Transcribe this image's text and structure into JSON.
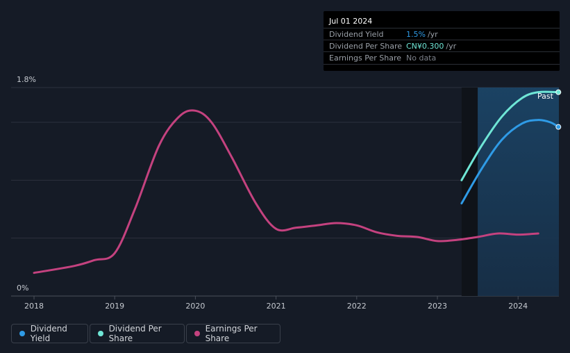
{
  "chart_data": {
    "type": "line",
    "title": "",
    "x_ticks": [
      2018,
      2019,
      2020,
      2021,
      2022,
      2023,
      2024
    ],
    "y_min_label": "0%",
    "y_max_label": "1.8%",
    "ylim": [
      0,
      1.8
    ],
    "past_label": "Past",
    "past_region_start": 2023.5,
    "series": [
      {
        "name": "Earnings Per Share",
        "color": "#c4427f",
        "points": [
          [
            2018.0,
            0.2
          ],
          [
            2018.5,
            0.26
          ],
          [
            2018.75,
            0.31
          ],
          [
            2019.0,
            0.37
          ],
          [
            2019.25,
            0.75
          ],
          [
            2019.55,
            1.3
          ],
          [
            2019.8,
            1.55
          ],
          [
            2020.0,
            1.6
          ],
          [
            2020.2,
            1.5
          ],
          [
            2020.45,
            1.2
          ],
          [
            2020.75,
            0.8
          ],
          [
            2021.0,
            0.58
          ],
          [
            2021.25,
            0.59
          ],
          [
            2021.5,
            0.61
          ],
          [
            2021.75,
            0.63
          ],
          [
            2022.0,
            0.61
          ],
          [
            2022.25,
            0.55
          ],
          [
            2022.5,
            0.52
          ],
          [
            2022.75,
            0.51
          ],
          [
            2023.0,
            0.475
          ],
          [
            2023.25,
            0.485
          ],
          [
            2023.5,
            0.51
          ],
          [
            2023.75,
            0.54
          ],
          [
            2024.0,
            0.53
          ],
          [
            2024.25,
            0.54
          ]
        ]
      },
      {
        "name": "Dividend Yield",
        "color": "#2f9be6",
        "points": [
          [
            2023.3,
            0.8
          ],
          [
            2023.55,
            1.1
          ],
          [
            2023.8,
            1.35
          ],
          [
            2024.05,
            1.49
          ],
          [
            2024.25,
            1.52
          ],
          [
            2024.4,
            1.5
          ],
          [
            2024.5,
            1.46
          ]
        ]
      },
      {
        "name": "Dividend Per Share",
        "color": "#6fe6d6",
        "points": [
          [
            2023.3,
            1.0
          ],
          [
            2023.55,
            1.3
          ],
          [
            2023.8,
            1.55
          ],
          [
            2024.05,
            1.71
          ],
          [
            2024.25,
            1.76
          ],
          [
            2024.5,
            1.76
          ]
        ]
      }
    ]
  },
  "tooltip": {
    "date": "Jul 01 2024",
    "rows": [
      {
        "label": "Dividend Yield",
        "value": "1.5%",
        "unit": "/yr",
        "color": "#2f9be6"
      },
      {
        "label": "Dividend Per Share",
        "value": "CN¥0.300",
        "unit": "/yr",
        "color": "#6fe6d6"
      },
      {
        "label": "Earnings Per Share",
        "value": "No data",
        "unit": "",
        "color": "#7c818a"
      }
    ]
  },
  "legend": [
    {
      "label": "Dividend Yield",
      "color": "#2f9be6"
    },
    {
      "label": "Dividend Per Share",
      "color": "#6fe6d6"
    },
    {
      "label": "Earnings Per Share",
      "color": "#c4427f"
    }
  ]
}
